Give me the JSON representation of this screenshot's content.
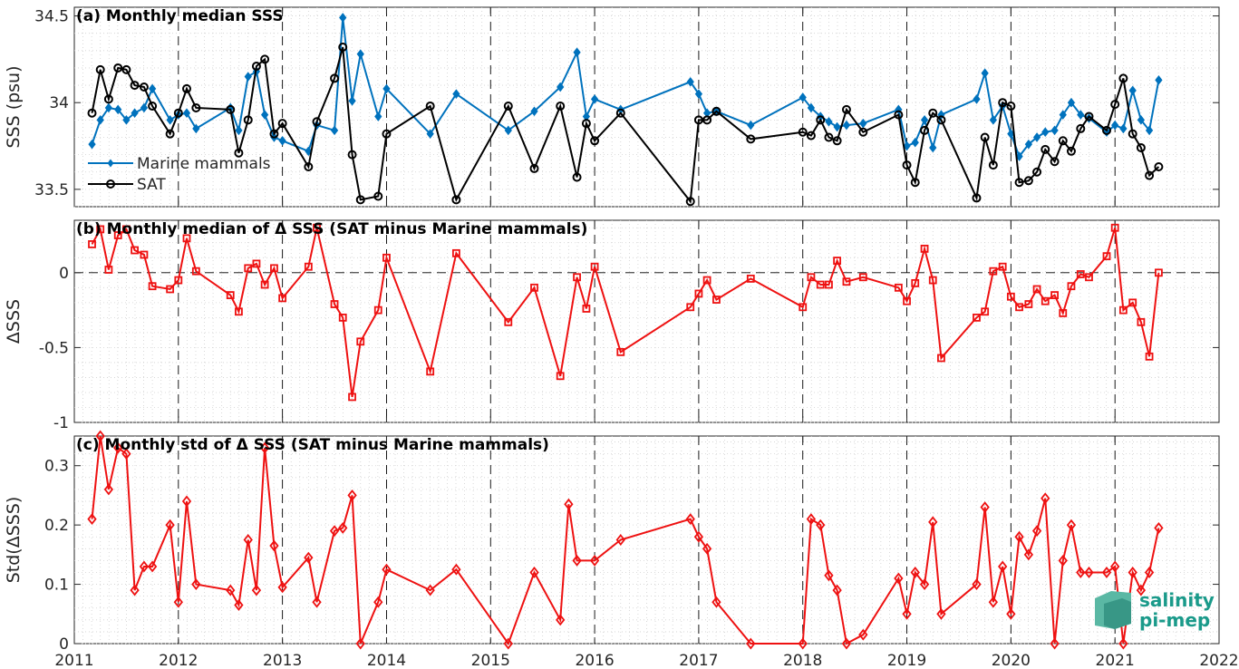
{
  "colors": {
    "mammals": "#0072BD",
    "sat": "#000000",
    "delta": "#EE1111",
    "logo": "#1a9a8a"
  },
  "logo": {
    "line1": "salinity",
    "line2": "pi-mep"
  },
  "x_axis": {
    "ticks": [
      "2011",
      "2012",
      "2013",
      "2014",
      "2015",
      "2016",
      "2017",
      "2018",
      "2019",
      "2020",
      "2021",
      "2022"
    ],
    "xlim": [
      2011,
      2022
    ]
  },
  "chart_data": [
    {
      "type": "line",
      "title": "(a) Monthly median SSS",
      "ylabel": "SSS (psu)",
      "ylim": [
        33.4,
        34.55
      ],
      "yticks": [
        "33.5",
        "34",
        "34.5"
      ],
      "ytick_values": [
        33.5,
        34.0,
        34.5
      ],
      "legend": "bottom-left",
      "series": [
        {
          "name": "Marine mammals",
          "marker": "diamond-filled",
          "x": [
            2011.17,
            2011.25,
            2011.33,
            2011.42,
            2011.5,
            2011.58,
            2011.67,
            2011.75,
            2011.92,
            2012.0,
            2012.08,
            2012.17,
            2012.5,
            2012.58,
            2012.67,
            2012.75,
            2012.83,
            2012.92,
            2013.0,
            2013.25,
            2013.33,
            2013.5,
            2013.58,
            2013.67,
            2013.75,
            2013.92,
            2014.0,
            2014.42,
            2014.67,
            2015.17,
            2015.42,
            2015.67,
            2015.83,
            2015.92,
            2016.0,
            2016.25,
            2016.92,
            2017.0,
            2017.08,
            2017.17,
            2017.5,
            2018.0,
            2018.08,
            2018.17,
            2018.25,
            2018.33,
            2018.42,
            2018.58,
            2018.92,
            2019.0,
            2019.08,
            2019.17,
            2019.25,
            2019.33,
            2019.67,
            2019.75,
            2019.83,
            2019.92,
            2020.0,
            2020.08,
            2020.17,
            2020.25,
            2020.33,
            2020.42,
            2020.5,
            2020.58,
            2020.67,
            2020.75,
            2020.92,
            2021.0,
            2021.08,
            2021.17,
            2021.25,
            2021.33,
            2021.42
          ],
          "y": [
            33.76,
            33.9,
            33.97,
            33.96,
            33.9,
            33.94,
            33.97,
            34.08,
            33.9,
            33.93,
            33.94,
            33.85,
            33.97,
            33.84,
            34.15,
            34.18,
            33.93,
            33.8,
            33.78,
            33.72,
            33.87,
            33.84,
            34.49,
            34.01,
            34.28,
            33.92,
            34.08,
            33.82,
            34.05,
            33.84,
            33.95,
            34.09,
            34.29,
            33.92,
            34.02,
            33.96,
            34.12,
            34.05,
            33.94,
            33.95,
            33.87,
            34.03,
            33.97,
            33.92,
            33.89,
            33.86,
            33.87,
            33.88,
            33.96,
            33.75,
            33.77,
            33.9,
            33.74,
            33.93,
            34.02,
            34.17,
            33.9,
            33.98,
            33.82,
            33.69,
            33.76,
            33.8,
            33.83,
            33.84,
            33.93,
            34.0,
            33.93,
            33.91,
            33.83,
            33.87,
            33.85,
            34.07,
            33.9,
            33.84,
            34.13
          ]
        },
        {
          "name": "SAT",
          "marker": "circle-open",
          "x": [
            2011.17,
            2011.25,
            2011.33,
            2011.42,
            2011.5,
            2011.58,
            2011.67,
            2011.75,
            2011.92,
            2012.0,
            2012.08,
            2012.17,
            2012.5,
            2012.58,
            2012.67,
            2012.75,
            2012.83,
            2012.92,
            2013.0,
            2013.25,
            2013.33,
            2013.5,
            2013.58,
            2013.67,
            2013.75,
            2013.92,
            2014.0,
            2014.42,
            2014.67,
            2015.17,
            2015.42,
            2015.67,
            2015.83,
            2015.92,
            2016.0,
            2016.25,
            2016.92,
            2017.0,
            2017.08,
            2017.17,
            2017.5,
            2018.0,
            2018.08,
            2018.17,
            2018.25,
            2018.33,
            2018.42,
            2018.58,
            2018.92,
            2019.0,
            2019.08,
            2019.17,
            2019.25,
            2019.33,
            2019.67,
            2019.75,
            2019.83,
            2019.92,
            2020.0,
            2020.08,
            2020.17,
            2020.25,
            2020.33,
            2020.42,
            2020.5,
            2020.58,
            2020.67,
            2020.75,
            2020.92,
            2021.0,
            2021.08,
            2021.17,
            2021.25,
            2021.33,
            2021.42
          ],
          "y": [
            33.94,
            34.19,
            34.02,
            34.2,
            34.19,
            34.1,
            34.09,
            33.98,
            33.82,
            33.94,
            34.08,
            33.97,
            33.96,
            33.71,
            33.9,
            34.21,
            34.25,
            33.82,
            33.88,
            33.63,
            33.89,
            34.14,
            34.32,
            33.7,
            33.44,
            33.46,
            33.82,
            33.98,
            33.44,
            33.98,
            33.62,
            33.98,
            33.57,
            33.88,
            33.78,
            33.94,
            33.43,
            33.9,
            33.9,
            33.95,
            33.79,
            33.83,
            33.81,
            33.9,
            33.8,
            33.78,
            33.96,
            33.83,
            33.93,
            33.64,
            33.54,
            33.84,
            33.94,
            33.9,
            33.45,
            33.8,
            33.64,
            34.0,
            33.98,
            33.54,
            33.55,
            33.6,
            33.73,
            33.66,
            33.78,
            33.72,
            33.85,
            33.92,
            33.84,
            33.99,
            34.14,
            33.82,
            33.74,
            33.58,
            33.63
          ]
        }
      ]
    },
    {
      "type": "line",
      "title": "(b) Monthly median of Δ SSS (SAT minus Marine mammals)",
      "ylabel": "ΔSSS",
      "ylim": [
        -1,
        0.35
      ],
      "yticks": [
        "-1",
        "-0.5",
        "0"
      ],
      "ytick_values": [
        -1,
        -0.5,
        0
      ],
      "series": [
        {
          "marker": "square-open",
          "x": [
            2011.17,
            2011.25,
            2011.33,
            2011.42,
            2011.5,
            2011.58,
            2011.67,
            2011.75,
            2011.92,
            2012.0,
            2012.08,
            2012.17,
            2012.5,
            2012.58,
            2012.67,
            2012.75,
            2012.83,
            2012.92,
            2013.0,
            2013.25,
            2013.33,
            2013.5,
            2013.58,
            2013.67,
            2013.75,
            2013.92,
            2014.0,
            2014.42,
            2014.67,
            2015.17,
            2015.42,
            2015.67,
            2015.83,
            2015.92,
            2016.0,
            2016.25,
            2016.92,
            2017.0,
            2017.08,
            2017.17,
            2017.5,
            2018.0,
            2018.08,
            2018.17,
            2018.25,
            2018.33,
            2018.42,
            2018.58,
            2018.92,
            2019.0,
            2019.08,
            2019.17,
            2019.25,
            2019.33,
            2019.67,
            2019.75,
            2019.83,
            2019.92,
            2020.0,
            2020.08,
            2020.17,
            2020.25,
            2020.33,
            2020.42,
            2020.5,
            2020.58,
            2020.67,
            2020.75,
            2020.92,
            2021.0,
            2021.08,
            2021.17,
            2021.25,
            2021.33,
            2021.42
          ],
          "y": [
            0.19,
            0.29,
            0.02,
            0.25,
            0.29,
            0.15,
            0.12,
            -0.09,
            -0.11,
            -0.05,
            0.23,
            0.01,
            -0.15,
            -0.26,
            0.03,
            0.06,
            -0.08,
            0.03,
            -0.17,
            0.04,
            0.3,
            -0.21,
            -0.3,
            -0.83,
            -0.46,
            -0.25,
            0.1,
            -0.66,
            0.13,
            -0.33,
            -0.1,
            -0.69,
            -0.03,
            -0.24,
            0.04,
            -0.53,
            -0.23,
            -0.14,
            -0.05,
            -0.18,
            -0.04,
            -0.23,
            -0.03,
            -0.08,
            -0.08,
            0.08,
            -0.06,
            -0.03,
            -0.1,
            -0.19,
            -0.07,
            0.16,
            -0.05,
            -0.57,
            -0.3,
            -0.26,
            0.01,
            0.04,
            -0.16,
            -0.23,
            -0.21,
            -0.11,
            -0.19,
            -0.15,
            -0.27,
            -0.09,
            -0.01,
            -0.03,
            0.11,
            0.3,
            -0.25,
            -0.2,
            -0.33,
            -0.56,
            0.0
          ]
        }
      ]
    },
    {
      "type": "line",
      "title": "(c) Monthly std of Δ SSS (SAT minus Marine mammals)",
      "ylabel": "Std(ΔSSS)",
      "ylim": [
        0,
        0.35
      ],
      "yticks": [
        "0",
        "0.1",
        "0.2",
        "0.3"
      ],
      "ytick_values": [
        0,
        0.1,
        0.2,
        0.3
      ],
      "series": [
        {
          "marker": "diamond-open",
          "x": [
            2011.17,
            2011.25,
            2011.33,
            2011.42,
            2011.5,
            2011.58,
            2011.67,
            2011.75,
            2011.92,
            2012.0,
            2012.08,
            2012.17,
            2012.5,
            2012.58,
            2012.67,
            2012.75,
            2012.83,
            2012.92,
            2013.0,
            2013.25,
            2013.33,
            2013.5,
            2013.58,
            2013.67,
            2013.75,
            2013.92,
            2014.0,
            2014.42,
            2014.67,
            2015.17,
            2015.42,
            2015.67,
            2015.75,
            2015.83,
            2016.0,
            2016.25,
            2016.92,
            2017.0,
            2017.08,
            2017.17,
            2017.5,
            2018.0,
            2018.08,
            2018.17,
            2018.25,
            2018.33,
            2018.42,
            2018.58,
            2018.92,
            2019.0,
            2019.08,
            2019.17,
            2019.25,
            2019.33,
            2019.67,
            2019.75,
            2019.83,
            2019.92,
            2020.0,
            2020.08,
            2020.17,
            2020.25,
            2020.33,
            2020.42,
            2020.5,
            2020.58,
            2020.67,
            2020.75,
            2020.92,
            2021.0,
            2021.08,
            2021.17,
            2021.25,
            2021.33,
            2021.42
          ],
          "y": [
            0.21,
            0.35,
            0.26,
            0.33,
            0.32,
            0.09,
            0.13,
            0.13,
            0.2,
            0.07,
            0.24,
            0.1,
            0.09,
            0.065,
            0.175,
            0.09,
            0.33,
            0.165,
            0.095,
            0.145,
            0.07,
            0.19,
            0.195,
            0.25,
            0.0,
            0.07,
            0.125,
            0.09,
            0.125,
            0.0,
            0.12,
            0.04,
            0.235,
            0.14,
            0.14,
            0.175,
            0.21,
            0.18,
            0.16,
            0.07,
            0.0,
            0.0,
            0.21,
            0.2,
            0.115,
            0.09,
            0.0,
            0.015,
            0.11,
            0.05,
            0.12,
            0.1,
            0.205,
            0.05,
            0.1,
            0.23,
            0.07,
            0.13,
            0.05,
            0.18,
            0.15,
            0.19,
            0.245,
            0.0,
            0.14,
            0.2,
            0.12,
            0.12,
            0.12,
            0.13,
            0.0,
            0.12,
            0.09,
            0.12,
            0.195
          ]
        }
      ]
    }
  ]
}
